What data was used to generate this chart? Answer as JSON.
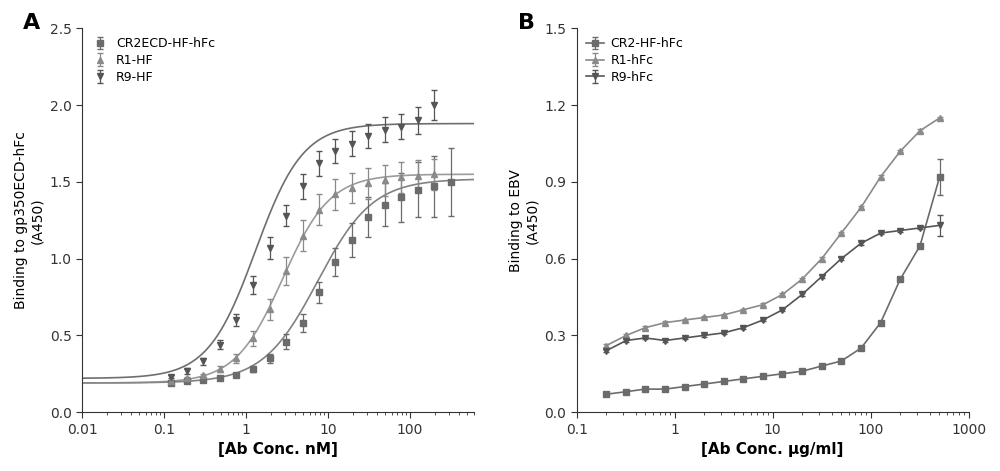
{
  "panel_A": {
    "title_label": "A",
    "xlabel": "[Ab Conc. nM]",
    "ylabel": "Binding to gp350ECD-hFc\n(A450)",
    "ylim": [
      0.0,
      2.5
    ],
    "yticks": [
      0.0,
      0.5,
      1.0,
      1.5,
      2.0,
      2.5
    ],
    "xlim_log": [
      0.01,
      600
    ],
    "series": [
      {
        "label": "CR2ECD-HF-hFc",
        "marker": "s",
        "color": "#6b6b6b",
        "connect_line": false,
        "x": [
          0.12,
          0.19,
          0.3,
          0.48,
          0.76,
          1.22,
          1.94,
          3.08,
          4.89,
          7.76,
          12.3,
          19.5,
          31.0,
          49.3,
          78.2,
          124.2,
          197.4,
          313.5
        ],
        "y": [
          0.19,
          0.2,
          0.21,
          0.22,
          0.24,
          0.28,
          0.35,
          0.46,
          0.58,
          0.78,
          0.98,
          1.12,
          1.27,
          1.35,
          1.4,
          1.45,
          1.47,
          1.5
        ],
        "yerr": [
          0.01,
          0.01,
          0.01,
          0.01,
          0.01,
          0.02,
          0.03,
          0.05,
          0.06,
          0.07,
          0.09,
          0.11,
          0.13,
          0.14,
          0.16,
          0.18,
          0.2,
          0.22
        ],
        "fit_curve": true,
        "ec50": 7.5,
        "top": 1.52,
        "bottom": 0.19,
        "hill": 1.3
      },
      {
        "label": "R1-HF",
        "marker": "^",
        "color": "#8a8a8a",
        "connect_line": false,
        "x": [
          0.12,
          0.19,
          0.3,
          0.48,
          0.76,
          1.22,
          1.94,
          3.08,
          4.89,
          7.76,
          12.3,
          19.5,
          31.0,
          49.3,
          78.2,
          124.2,
          197.4
        ],
        "y": [
          0.2,
          0.22,
          0.24,
          0.28,
          0.35,
          0.48,
          0.67,
          0.92,
          1.15,
          1.32,
          1.42,
          1.46,
          1.49,
          1.51,
          1.53,
          1.54,
          1.55
        ],
        "yerr": [
          0.01,
          0.01,
          0.01,
          0.02,
          0.03,
          0.05,
          0.07,
          0.09,
          0.1,
          0.1,
          0.1,
          0.1,
          0.1,
          0.1,
          0.1,
          0.1,
          0.1
        ],
        "fit_curve": true,
        "ec50": 2.8,
        "top": 1.55,
        "bottom": 0.19,
        "hill": 1.5
      },
      {
        "label": "R9-HF",
        "marker": "v",
        "color": "#555555",
        "connect_line": false,
        "x": [
          0.12,
          0.19,
          0.3,
          0.48,
          0.76,
          1.22,
          1.94,
          3.08,
          4.89,
          7.76,
          12.3,
          19.5,
          31.0,
          49.3,
          78.2,
          124.2,
          197.4
        ],
        "y": [
          0.23,
          0.27,
          0.33,
          0.44,
          0.6,
          0.83,
          1.07,
          1.28,
          1.47,
          1.62,
          1.7,
          1.75,
          1.8,
          1.84,
          1.86,
          1.9,
          2.0
        ],
        "yerr": [
          0.01,
          0.02,
          0.02,
          0.03,
          0.04,
          0.06,
          0.07,
          0.07,
          0.08,
          0.08,
          0.08,
          0.08,
          0.08,
          0.08,
          0.08,
          0.09,
          0.1
        ],
        "fit_curve": true,
        "ec50": 1.3,
        "top": 1.88,
        "bottom": 0.22,
        "hill": 1.5
      }
    ]
  },
  "panel_B": {
    "title_label": "B",
    "xlabel": "[Ab Conc. μg/ml]",
    "ylabel": "Binding to EBV\n(A450)",
    "ylim": [
      0.0,
      1.5
    ],
    "yticks": [
      0.0,
      0.3,
      0.6,
      0.9,
      1.2,
      1.5
    ],
    "xlim_log": [
      0.1,
      1000
    ],
    "series": [
      {
        "label": "CR2-HF-hFc",
        "marker": "s",
        "color": "#6b6b6b",
        "connect_line": true,
        "x": [
          0.2,
          0.32,
          0.5,
          0.8,
          1.26,
          2.0,
          3.18,
          5.0,
          7.96,
          12.6,
          20.0,
          31.7,
          50.3,
          79.8,
          126.7,
          201.1,
          319.2,
          506.8
        ],
        "y": [
          0.07,
          0.08,
          0.09,
          0.09,
          0.1,
          0.11,
          0.12,
          0.13,
          0.14,
          0.15,
          0.16,
          0.18,
          0.2,
          0.25,
          0.35,
          0.52,
          0.65,
          0.92
        ],
        "yerr": [
          0.005,
          0.005,
          0.005,
          0.005,
          0.005,
          0.005,
          0.005,
          0.005,
          0.005,
          0.005,
          0.005,
          0.005,
          0.005,
          0.005,
          0.005,
          0.005,
          0.005,
          0.07
        ]
      },
      {
        "label": "R1-hFc",
        "marker": "^",
        "color": "#8a8a8a",
        "connect_line": true,
        "x": [
          0.2,
          0.32,
          0.5,
          0.8,
          1.26,
          2.0,
          3.18,
          5.0,
          7.96,
          12.6,
          20.0,
          31.7,
          50.3,
          79.8,
          126.7,
          201.1,
          319.2,
          506.8
        ],
        "y": [
          0.26,
          0.3,
          0.33,
          0.35,
          0.36,
          0.37,
          0.38,
          0.4,
          0.42,
          0.46,
          0.52,
          0.6,
          0.7,
          0.8,
          0.92,
          1.02,
          1.1,
          1.15
        ],
        "yerr": [
          0.005,
          0.005,
          0.005,
          0.005,
          0.005,
          0.005,
          0.005,
          0.005,
          0.005,
          0.005,
          0.005,
          0.005,
          0.005,
          0.005,
          0.005,
          0.005,
          0.005,
          0.005
        ]
      },
      {
        "label": "R9-hFc",
        "marker": "v",
        "color": "#555555",
        "connect_line": true,
        "x": [
          0.2,
          0.32,
          0.5,
          0.8,
          1.26,
          2.0,
          3.18,
          5.0,
          7.96,
          12.6,
          20.0,
          31.7,
          50.3,
          79.8,
          126.7,
          201.1,
          319.2,
          506.8
        ],
        "y": [
          0.24,
          0.28,
          0.29,
          0.28,
          0.29,
          0.3,
          0.31,
          0.33,
          0.36,
          0.4,
          0.46,
          0.53,
          0.6,
          0.66,
          0.7,
          0.71,
          0.72,
          0.73
        ],
        "yerr": [
          0.005,
          0.005,
          0.005,
          0.005,
          0.005,
          0.005,
          0.005,
          0.005,
          0.005,
          0.005,
          0.005,
          0.005,
          0.005,
          0.005,
          0.005,
          0.005,
          0.005,
          0.04
        ]
      }
    ]
  },
  "figure_bg": "#ffffff",
  "markersize": 5,
  "linewidth": 1.2,
  "capsize": 2,
  "elinewidth": 0.9
}
